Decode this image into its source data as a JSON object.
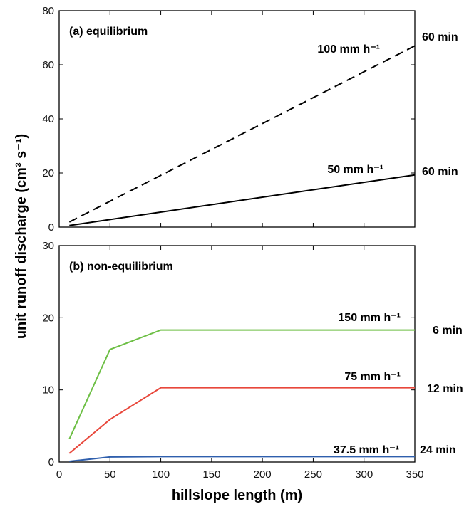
{
  "chart_data": [
    {
      "type": "line",
      "panel_title": "(a) equilibrium",
      "xlabel": "hillslope length (m)",
      "ylabel": "unit runoff discharge (cm³ s⁻¹)",
      "xlim": [
        0,
        350
      ],
      "ylim": [
        0,
        80
      ],
      "xticks": [
        0,
        50,
        100,
        150,
        200,
        250,
        300,
        350
      ],
      "yticks": [
        0,
        20,
        40,
        60,
        80
      ],
      "grid": false,
      "series": [
        {
          "name": "100 mm h⁻¹",
          "time_label": "60 min",
          "color": "#000000",
          "dash": true,
          "x": [
            10,
            350
          ],
          "y": [
            1.9,
            67
          ]
        },
        {
          "name": "50 mm h⁻¹",
          "time_label": "60 min",
          "color": "#000000",
          "dash": false,
          "x": [
            10,
            350
          ],
          "y": [
            0.6,
            19.3
          ]
        }
      ]
    },
    {
      "type": "line",
      "panel_title": "(b) non-equilibrium",
      "xlabel": "hillslope length (m)",
      "ylabel": "unit runoff discharge (cm³ s⁻¹)",
      "xlim": [
        0,
        350
      ],
      "ylim": [
        0,
        30
      ],
      "xticks": [
        0,
        50,
        100,
        150,
        200,
        250,
        300,
        350
      ],
      "yticks": [
        0,
        10,
        20,
        30
      ],
      "grid": false,
      "series": [
        {
          "name": "150 mm h⁻¹",
          "time_label": "6 min",
          "color": "#6dbf45",
          "dash": false,
          "x": [
            10,
            50,
            100,
            350
          ],
          "y": [
            3.2,
            15.6,
            18.3,
            18.3
          ]
        },
        {
          "name": "75 mm h⁻¹",
          "time_label": "12 min",
          "color": "#e8473b",
          "dash": false,
          "x": [
            10,
            50,
            100,
            350
          ],
          "y": [
            1.2,
            5.9,
            10.3,
            10.3
          ]
        },
        {
          "name": "37.5 mm h⁻¹",
          "time_label": "24 min",
          "color": "#2f5fad",
          "dash": false,
          "x": [
            10,
            50,
            100,
            350
          ],
          "y": [
            0.1,
            0.7,
            0.75,
            0.75
          ]
        }
      ]
    }
  ]
}
